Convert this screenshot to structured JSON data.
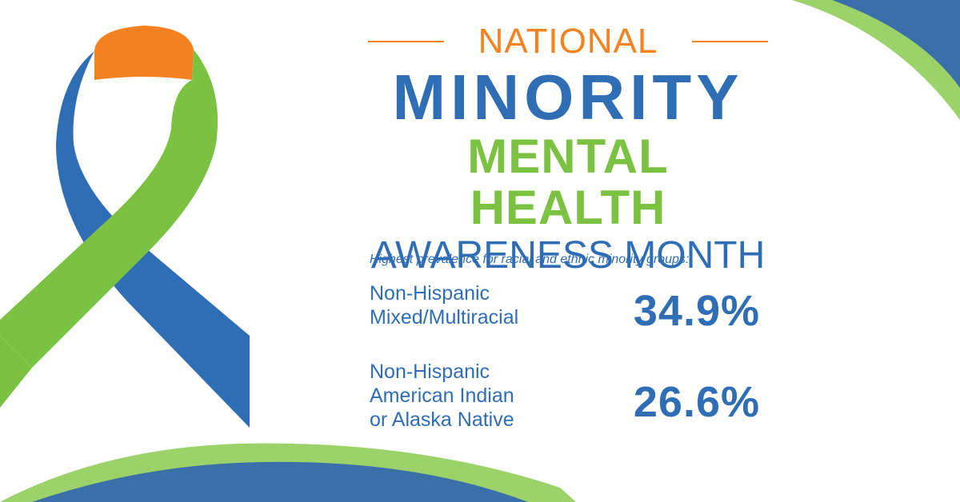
{
  "colors": {
    "blue": "#2f6db5",
    "green": "#7cc242",
    "orange": "#f58220",
    "corner_blue": "#3a6faa",
    "corner_green": "#9bd26a"
  },
  "heading": {
    "national": "NATIONAL",
    "minority": "MINORITY",
    "mental_health": "MENTAL HEALTH",
    "awareness_month": "AWARENESS MONTH"
  },
  "stats": {
    "subtitle": "Highest prevalence for racial and ethnic minority groups:",
    "items": [
      {
        "label_lines": [
          "Non-Hispanic",
          "Mixed/Multiracial"
        ],
        "value": "34.9%"
      },
      {
        "label_lines": [
          "Non-Hispanic",
          "American Indian",
          "or Alaska Native"
        ],
        "value": "26.6%"
      }
    ]
  },
  "icons": {
    "ribbon": "awareness-ribbon-icon"
  }
}
